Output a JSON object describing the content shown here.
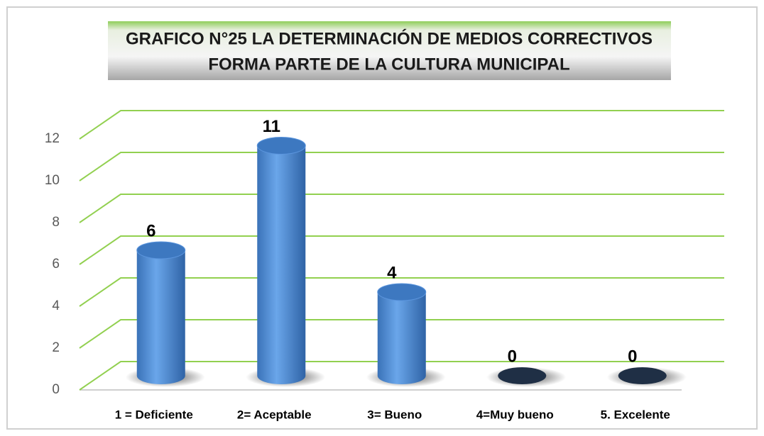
{
  "chart_data": {
    "type": "bar",
    "title": [
      "GRAFICO N°25  LA DETERMINACIÓN DE MEDIOS CORRECTIVOS",
      "FORMA PARTE DE LA CULTURA MUNICIPAL"
    ],
    "categories": [
      "1 = Deficiente",
      "2= Aceptable",
      "3= Bueno",
      "4=Muy bueno",
      "5. Excelente"
    ],
    "values": [
      6,
      11,
      4,
      0,
      0
    ],
    "color": "#4a8ad4",
    "ylim": [
      0,
      12
    ],
    "yticks": [
      0,
      2,
      4,
      6,
      8,
      10,
      12
    ],
    "grid": true,
    "grid_color": "#92d050"
  }
}
